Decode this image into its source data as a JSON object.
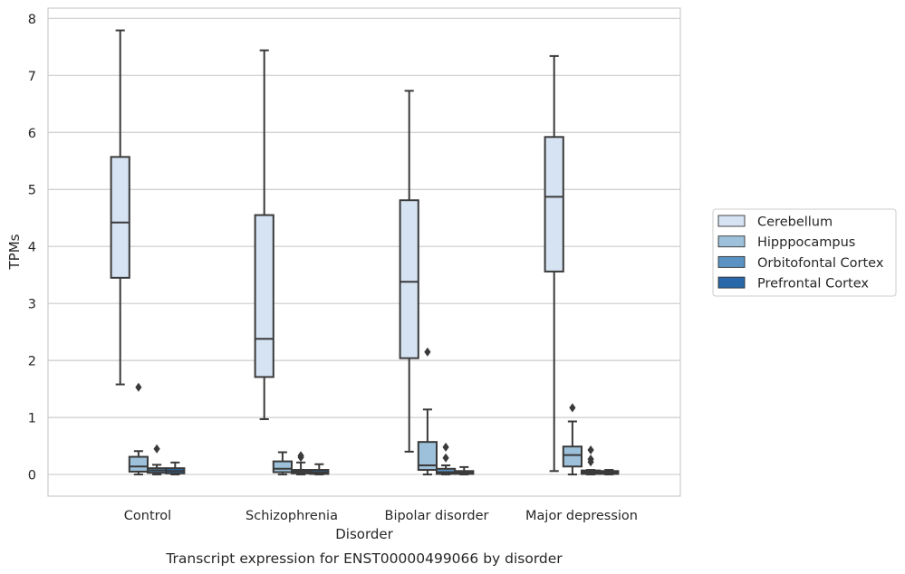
{
  "chart_data": {
    "type": "box",
    "xlabel": "Disorder",
    "ylabel": "TPMs",
    "caption": "Transcript expression for ENST00000499066 by disorder",
    "ylim": [
      -0.38,
      8.18
    ],
    "yticks": [
      0,
      1,
      2,
      3,
      4,
      5,
      6,
      7,
      8
    ],
    "grid": "horizontal",
    "legend_position": "right",
    "categories": [
      "Control",
      "Schizophrenia",
      "Bipolar disorder",
      "Major depression"
    ],
    "series": [
      {
        "name": "Cerebellum",
        "color": "#d5e3f2",
        "boxes": [
          {
            "whislo": 1.58,
            "q1": 3.45,
            "med": 4.42,
            "q3": 5.57,
            "whishi": 7.79,
            "fliers": []
          },
          {
            "whislo": 0.97,
            "q1": 1.71,
            "med": 2.38,
            "q3": 4.55,
            "whishi": 7.44,
            "fliers": []
          },
          {
            "whislo": 0.4,
            "q1": 2.04,
            "med": 3.38,
            "q3": 4.81,
            "whishi": 6.73,
            "fliers": []
          },
          {
            "whislo": 0.06,
            "q1": 3.56,
            "med": 4.87,
            "q3": 5.92,
            "whishi": 7.34,
            "fliers": []
          }
        ]
      },
      {
        "name": "Hipppocampus",
        "color": "#9dc1da",
        "boxes": [
          {
            "whislo": 0.0,
            "q1": 0.05,
            "med": 0.14,
            "q3": 0.31,
            "whishi": 0.41,
            "fliers": [
              1.53
            ]
          },
          {
            "whislo": 0.0,
            "q1": 0.04,
            "med": 0.1,
            "q3": 0.23,
            "whishi": 0.39,
            "fliers": []
          },
          {
            "whislo": 0.0,
            "q1": 0.08,
            "med": 0.16,
            "q3": 0.57,
            "whishi": 1.14,
            "fliers": [
              2.15
            ]
          },
          {
            "whislo": 0.0,
            "q1": 0.14,
            "med": 0.34,
            "q3": 0.49,
            "whishi": 0.93,
            "fliers": [
              1.17
            ]
          }
        ]
      },
      {
        "name": "Orbitofontal Cortex",
        "color": "#5a93c3",
        "boxes": [
          {
            "whislo": 0.0,
            "q1": 0.03,
            "med": 0.07,
            "q3": 0.11,
            "whishi": 0.17,
            "fliers": [
              0.45
            ]
          },
          {
            "whislo": 0.0,
            "q1": 0.02,
            "med": 0.05,
            "q3": 0.08,
            "whishi": 0.21,
            "fliers": [
              0.3,
              0.33
            ]
          },
          {
            "whislo": 0.0,
            "q1": 0.01,
            "med": 0.04,
            "q3": 0.1,
            "whishi": 0.16,
            "fliers": [
              0.29,
              0.48
            ]
          },
          {
            "whislo": 0.0,
            "q1": 0.01,
            "med": 0.04,
            "q3": 0.07,
            "whishi": 0.08,
            "fliers": [
              0.22,
              0.27,
              0.43
            ]
          }
        ]
      },
      {
        "name": "Prefrontal Cortex",
        "color": "#2868a8",
        "boxes": [
          {
            "whislo": 0.0,
            "q1": 0.02,
            "med": 0.06,
            "q3": 0.11,
            "whishi": 0.21,
            "fliers": []
          },
          {
            "whislo": 0.0,
            "q1": 0.01,
            "med": 0.04,
            "q3": 0.08,
            "whishi": 0.18,
            "fliers": []
          },
          {
            "whislo": 0.0,
            "q1": 0.01,
            "med": 0.03,
            "q3": 0.06,
            "whishi": 0.13,
            "fliers": []
          },
          {
            "whislo": 0.0,
            "q1": 0.01,
            "med": 0.03,
            "q3": 0.06,
            "whishi": 0.08,
            "fliers": []
          }
        ]
      }
    ]
  }
}
